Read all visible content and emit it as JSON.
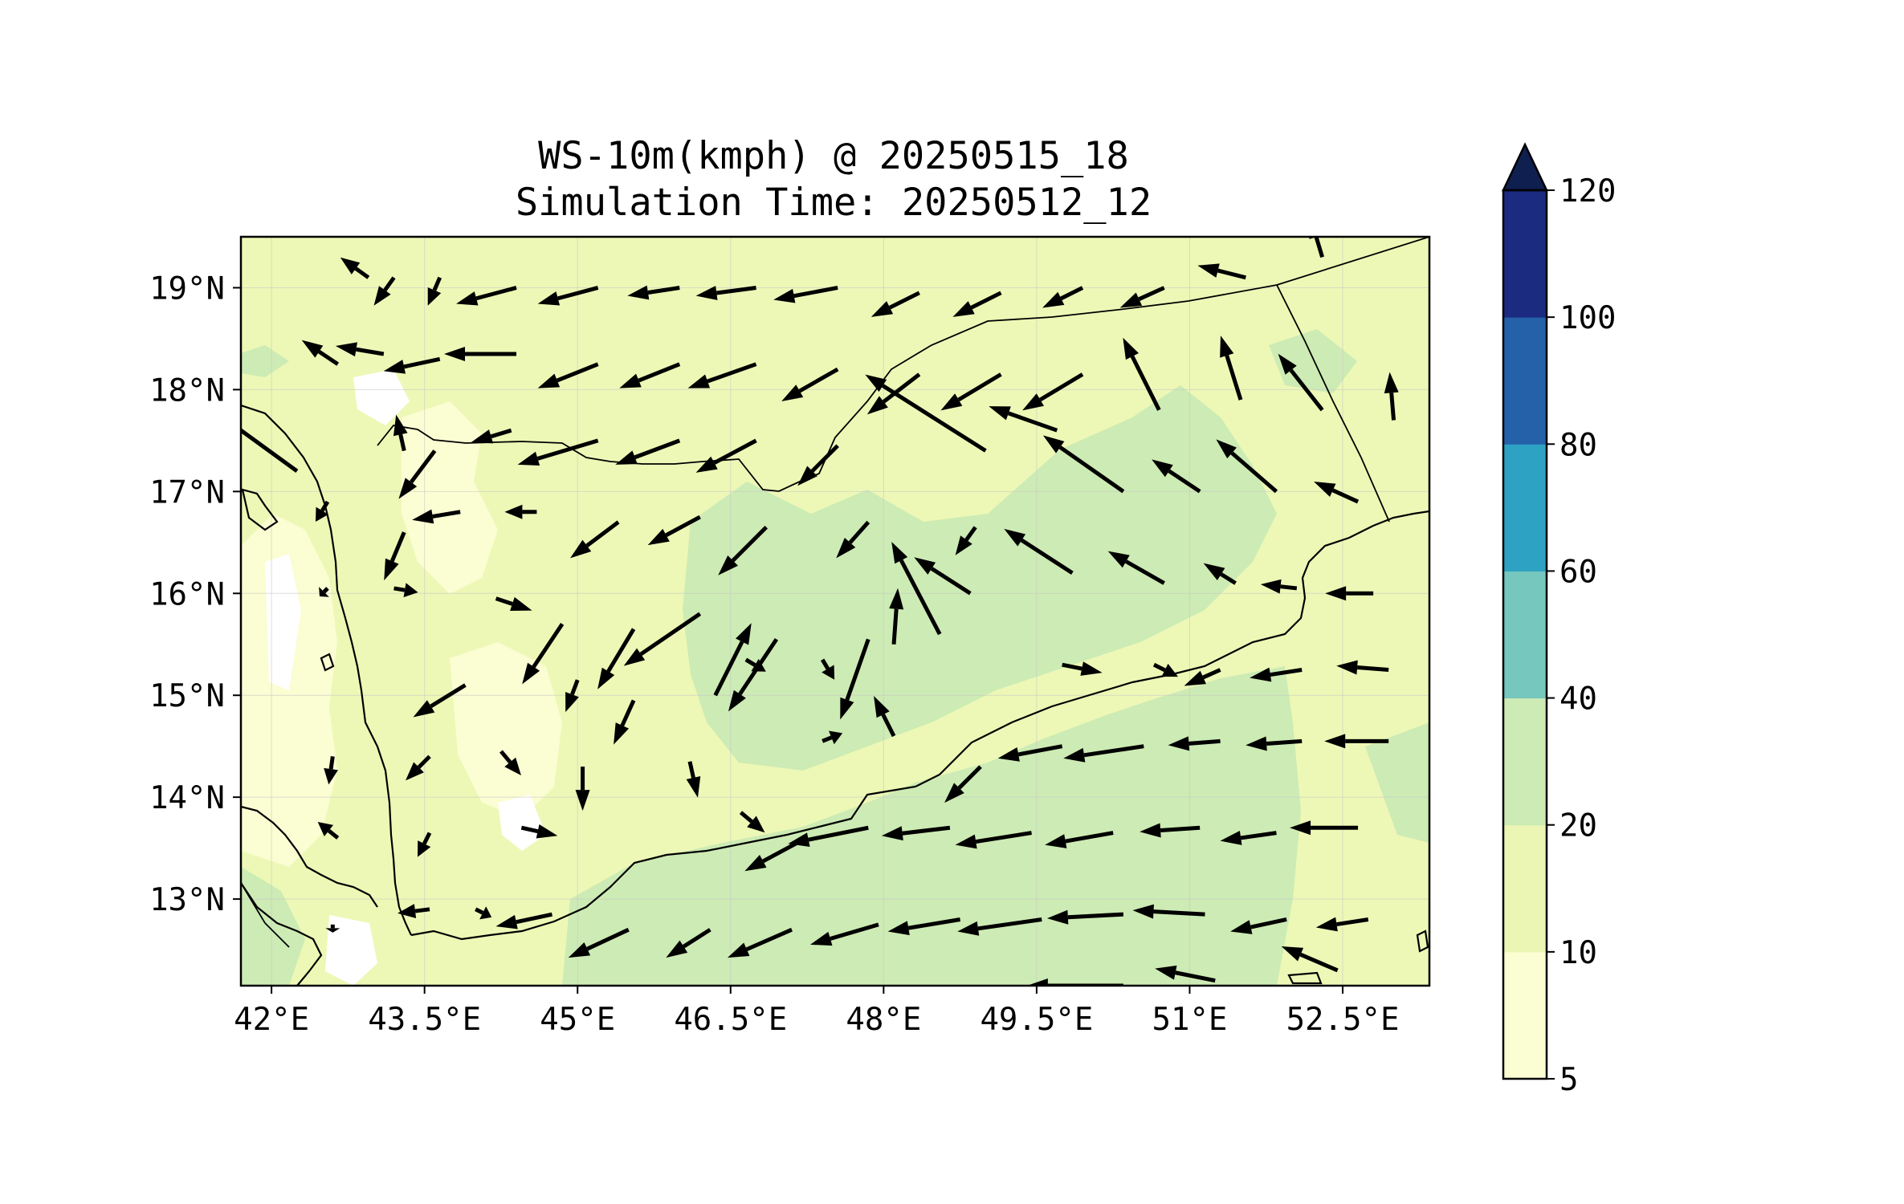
{
  "title": {
    "line1": "WS-10m(kmph) @ 20250515_18",
    "line2": "Simulation Time: 20250512_12"
  },
  "map": {
    "lon_range": [
      41.7,
      53.35
    ],
    "lat_range": [
      12.15,
      19.5
    ],
    "x_ticks": [
      "42°E",
      "43.5°E",
      "45°E",
      "46.5°E",
      "48°E",
      "49.5°E",
      "51°E",
      "52.5°E"
    ],
    "y_ticks": [
      "19°N",
      "18°N",
      "17°N",
      "16°N",
      "15°N",
      "14°N",
      "13°N"
    ],
    "gridlines": true,
    "background_level_color": "#edf8b6",
    "vector_color": "#000000"
  },
  "colorbar": {
    "levels": [
      "5",
      "10",
      "20",
      "40",
      "60",
      "80",
      "100",
      "120"
    ],
    "colors": [
      "#fbfdd2",
      "#ebf6b4",
      "#cdebb4",
      "#76c7bd",
      "#2da2c3",
      "#2461a8",
      "#1b2b80"
    ],
    "extend_color": "#0f1f4f",
    "extend": "max"
  },
  "chart_data": {
    "type": "vector-field",
    "variable": "WS-10m(kmph)",
    "valid_time": "20250515_18",
    "simulation_time": "20250512_12",
    "colorbar_levels": [
      5,
      10,
      20,
      40,
      60,
      80,
      100,
      120
    ],
    "wind_vectors": [
      {
        "lon": 42.95,
        "lat": 19.1,
        "u": -0.7,
        "v": 0.5
      },
      {
        "lon": 43.2,
        "lat": 19.1,
        "u": -0.5,
        "v": -0.7
      },
      {
        "lon": 43.65,
        "lat": 19.1,
        "u": -0.3,
        "v": -0.7
      },
      {
        "lon": 44.4,
        "lat": 19.0,
        "u": -1.5,
        "v": -0.4
      },
      {
        "lon": 45.2,
        "lat": 19.0,
        "u": -1.5,
        "v": -0.4
      },
      {
        "lon": 46.0,
        "lat": 19.0,
        "u": -1.3,
        "v": -0.2
      },
      {
        "lon": 46.75,
        "lat": 19.0,
        "u": -1.5,
        "v": -0.2
      },
      {
        "lon": 47.55,
        "lat": 19.0,
        "u": -1.6,
        "v": -0.3
      },
      {
        "lon": 48.35,
        "lat": 18.95,
        "u": -1.2,
        "v": -0.6
      },
      {
        "lon": 49.15,
        "lat": 18.95,
        "u": -1.2,
        "v": -0.6
      },
      {
        "lon": 49.95,
        "lat": 19.0,
        "u": -1.0,
        "v": -0.5
      },
      {
        "lon": 50.75,
        "lat": 19.0,
        "u": -1.1,
        "v": -0.5
      },
      {
        "lon": 51.55,
        "lat": 19.1,
        "u": -1.2,
        "v": 0.3
      },
      {
        "lon": 52.3,
        "lat": 19.3,
        "u": -0.3,
        "v": 1.0
      },
      {
        "lon": 42.65,
        "lat": 18.25,
        "u": -0.9,
        "v": 0.6
      },
      {
        "lon": 43.1,
        "lat": 18.35,
        "u": -1.2,
        "v": 0.2
      },
      {
        "lon": 43.65,
        "lat": 18.3,
        "u": -1.4,
        "v": -0.3
      },
      {
        "lon": 44.4,
        "lat": 18.35,
        "u": -1.8,
        "v": 0.0
      },
      {
        "lon": 45.2,
        "lat": 18.25,
        "u": -1.5,
        "v": -0.6
      },
      {
        "lon": 46.0,
        "lat": 18.25,
        "u": -1.5,
        "v": -0.6
      },
      {
        "lon": 46.75,
        "lat": 18.25,
        "u": -1.7,
        "v": -0.6
      },
      {
        "lon": 47.55,
        "lat": 18.2,
        "u": -1.4,
        "v": -0.8
      },
      {
        "lon": 48.35,
        "lat": 18.15,
        "u": -1.3,
        "v": -1.0
      },
      {
        "lon": 49.15,
        "lat": 18.15,
        "u": -1.5,
        "v": -0.9
      },
      {
        "lon": 49.95,
        "lat": 18.15,
        "u": -1.5,
        "v": -0.9
      },
      {
        "lon": 50.7,
        "lat": 17.8,
        "u": -0.9,
        "v": 1.8
      },
      {
        "lon": 51.5,
        "lat": 17.9,
        "u": -0.5,
        "v": 1.6
      },
      {
        "lon": 52.3,
        "lat": 17.8,
        "u": -1.1,
        "v": 1.4
      },
      {
        "lon": 53.0,
        "lat": 17.7,
        "u": -0.1,
        "v": 1.2
      },
      {
        "lon": 43.3,
        "lat": 17.4,
        "u": -0.2,
        "v": 0.9
      },
      {
        "lon": 43.6,
        "lat": 17.4,
        "u": -0.9,
        "v": -1.2
      },
      {
        "lon": 44.35,
        "lat": 17.6,
        "u": -1.0,
        "v": -0.3
      },
      {
        "lon": 45.2,
        "lat": 17.5,
        "u": -2.0,
        "v": -0.6
      },
      {
        "lon": 46.0,
        "lat": 17.5,
        "u": -1.6,
        "v": -0.6
      },
      {
        "lon": 46.75,
        "lat": 17.5,
        "u": -1.5,
        "v": -0.8
      },
      {
        "lon": 47.55,
        "lat": 17.45,
        "u": -1.0,
        "v": -1.0
      },
      {
        "lon": 49.0,
        "lat": 17.4,
        "u": -3.0,
        "v": 1.9
      },
      {
        "lon": 49.7,
        "lat": 17.6,
        "u": -1.7,
        "v": 0.6
      },
      {
        "lon": 50.35,
        "lat": 17.0,
        "u": -2.0,
        "v": 1.4
      },
      {
        "lon": 51.1,
        "lat": 17.0,
        "u": -1.2,
        "v": 0.8
      },
      {
        "lon": 51.85,
        "lat": 17.0,
        "u": -1.5,
        "v": 1.3
      },
      {
        "lon": 52.65,
        "lat": 16.9,
        "u": -1.1,
        "v": 0.5
      },
      {
        "lon": 42.25,
        "lat": 17.2,
        "u": -2.2,
        "v": 1.6
      },
      {
        "lon": 42.55,
        "lat": 16.9,
        "u": -0.3,
        "v": -0.5
      },
      {
        "lon": 43.3,
        "lat": 16.6,
        "u": -0.5,
        "v": -1.2
      },
      {
        "lon": 43.85,
        "lat": 16.8,
        "u": -1.2,
        "v": -0.2
      },
      {
        "lon": 44.6,
        "lat": 16.8,
        "u": -0.8,
        "v": 0.0
      },
      {
        "lon": 45.4,
        "lat": 16.7,
        "u": -1.2,
        "v": -0.9
      },
      {
        "lon": 46.2,
        "lat": 16.75,
        "u": -1.3,
        "v": -0.7
      },
      {
        "lon": 46.85,
        "lat": 16.65,
        "u": -1.2,
        "v": -1.2
      },
      {
        "lon": 47.85,
        "lat": 16.7,
        "u": -0.8,
        "v": -0.9
      },
      {
        "lon": 48.9,
        "lat": 16.65,
        "u": -0.5,
        "v": -0.7
      },
      {
        "lon": 48.85,
        "lat": 16.0,
        "u": -1.4,
        "v": 0.9
      },
      {
        "lon": 49.85,
        "lat": 16.2,
        "u": -1.7,
        "v": 1.1
      },
      {
        "lon": 50.75,
        "lat": 16.1,
        "u": -1.4,
        "v": 0.8
      },
      {
        "lon": 51.45,
        "lat": 16.1,
        "u": -0.8,
        "v": 0.5
      },
      {
        "lon": 52.05,
        "lat": 16.05,
        "u": -0.9,
        "v": 0.1
      },
      {
        "lon": 52.8,
        "lat": 16.0,
        "u": -1.2,
        "v": 0.0
      },
      {
        "lon": 42.55,
        "lat": 16.05,
        "u": -0.2,
        "v": -0.2
      },
      {
        "lon": 43.2,
        "lat": 16.05,
        "u": 0.6,
        "v": -0.1
      },
      {
        "lon": 44.2,
        "lat": 15.95,
        "u": 0.9,
        "v": -0.3
      },
      {
        "lon": 44.85,
        "lat": 15.7,
        "u": -1.0,
        "v": -1.5
      },
      {
        "lon": 45.55,
        "lat": 15.65,
        "u": -0.9,
        "v": -1.5
      },
      {
        "lon": 46.2,
        "lat": 15.8,
        "u": -1.9,
        "v": -1.3
      },
      {
        "lon": 46.95,
        "lat": 15.55,
        "u": -1.2,
        "v": -1.8
      },
      {
        "lon": 47.85,
        "lat": 15.55,
        "u": -0.7,
        "v": -2.0
      },
      {
        "lon": 48.1,
        "lat": 15.5,
        "u": 0.1,
        "v": 1.4
      },
      {
        "lon": 48.55,
        "lat": 15.6,
        "u": -1.2,
        "v": 2.3
      },
      {
        "lon": 47.4,
        "lat": 15.35,
        "u": 0.3,
        "v": -0.5
      },
      {
        "lon": 46.65,
        "lat": 15.35,
        "u": 0.5,
        "v": -0.3
      },
      {
        "lon": 49.75,
        "lat": 15.3,
        "u": 1.0,
        "v": -0.2
      },
      {
        "lon": 50.65,
        "lat": 15.3,
        "u": 0.6,
        "v": -0.3
      },
      {
        "lon": 51.3,
        "lat": 15.25,
        "u": -0.9,
        "v": -0.4
      },
      {
        "lon": 52.1,
        "lat": 15.25,
        "u": -1.3,
        "v": -0.2
      },
      {
        "lon": 52.95,
        "lat": 15.25,
        "u": -1.3,
        "v": 0.1
      },
      {
        "lon": 43.9,
        "lat": 15.1,
        "u": -1.3,
        "v": -0.8
      },
      {
        "lon": 45.0,
        "lat": 15.15,
        "u": -0.3,
        "v": -0.8
      },
      {
        "lon": 45.55,
        "lat": 14.95,
        "u": -0.5,
        "v": -1.1
      },
      {
        "lon": 46.35,
        "lat": 15.0,
        "u": 0.9,
        "v": 1.8
      },
      {
        "lon": 48.1,
        "lat": 14.6,
        "u": -0.5,
        "v": 1.0
      },
      {
        "lon": 47.4,
        "lat": 14.55,
        "u": 0.5,
        "v": 0.2
      },
      {
        "lon": 42.6,
        "lat": 14.4,
        "u": -0.1,
        "v": -0.7
      },
      {
        "lon": 43.55,
        "lat": 14.4,
        "u": -0.6,
        "v": -0.6
      },
      {
        "lon": 44.25,
        "lat": 14.45,
        "u": 0.5,
        "v": -0.6
      },
      {
        "lon": 45.05,
        "lat": 14.3,
        "u": 0.0,
        "v": -1.1
      },
      {
        "lon": 46.1,
        "lat": 14.35,
        "u": 0.2,
        "v": -0.9
      },
      {
        "lon": 48.95,
        "lat": 14.3,
        "u": -0.9,
        "v": -0.9
      },
      {
        "lon": 49.75,
        "lat": 14.5,
        "u": -1.6,
        "v": -0.3
      },
      {
        "lon": 50.55,
        "lat": 14.5,
        "u": -2.0,
        "v": -0.3
      },
      {
        "lon": 51.3,
        "lat": 14.55,
        "u": -1.3,
        "v": -0.1
      },
      {
        "lon": 52.1,
        "lat": 14.55,
        "u": -1.4,
        "v": -0.1
      },
      {
        "lon": 52.95,
        "lat": 14.55,
        "u": -1.6,
        "v": 0.0
      },
      {
        "lon": 42.65,
        "lat": 13.6,
        "u": -0.5,
        "v": 0.4
      },
      {
        "lon": 43.55,
        "lat": 13.65,
        "u": -0.3,
        "v": -0.6
      },
      {
        "lon": 44.45,
        "lat": 13.7,
        "u": 0.9,
        "v": -0.2
      },
      {
        "lon": 46.6,
        "lat": 13.85,
        "u": 0.6,
        "v": -0.5
      },
      {
        "lon": 47.15,
        "lat": 13.55,
        "u": -1.3,
        "v": -0.7
      },
      {
        "lon": 47.85,
        "lat": 13.7,
        "u": -2.0,
        "v": -0.4
      },
      {
        "lon": 48.65,
        "lat": 13.7,
        "u": -1.7,
        "v": -0.2
      },
      {
        "lon": 49.45,
        "lat": 13.65,
        "u": -1.9,
        "v": -0.3
      },
      {
        "lon": 50.25,
        "lat": 13.65,
        "u": -1.7,
        "v": -0.3
      },
      {
        "lon": 51.1,
        "lat": 13.7,
        "u": -1.5,
        "v": -0.1
      },
      {
        "lon": 51.85,
        "lat": 13.65,
        "u": -1.4,
        "v": -0.2
      },
      {
        "lon": 52.65,
        "lat": 13.7,
        "u": -1.7,
        "v": 0.0
      },
      {
        "lon": 42.6,
        "lat": 12.75,
        "u": 0.0,
        "v": -0.2
      },
      {
        "lon": 43.55,
        "lat": 12.9,
        "u": -0.8,
        "v": -0.1
      },
      {
        "lon": 44.0,
        "lat": 12.9,
        "u": 0.4,
        "v": -0.2
      },
      {
        "lon": 44.75,
        "lat": 12.85,
        "u": -1.4,
        "v": -0.3
      },
      {
        "lon": 45.5,
        "lat": 12.7,
        "u": -1.5,
        "v": -0.7
      },
      {
        "lon": 46.3,
        "lat": 12.7,
        "u": -1.1,
        "v": -0.7
      },
      {
        "lon": 47.1,
        "lat": 12.7,
        "u": -1.6,
        "v": -0.7
      },
      {
        "lon": 47.95,
        "lat": 12.75,
        "u": -1.7,
        "v": -0.5
      },
      {
        "lon": 48.75,
        "lat": 12.8,
        "u": -1.8,
        "v": -0.3
      },
      {
        "lon": 49.55,
        "lat": 12.8,
        "u": -2.1,
        "v": -0.3
      },
      {
        "lon": 50.35,
        "lat": 12.85,
        "u": -1.9,
        "v": -0.1
      },
      {
        "lon": 51.15,
        "lat": 12.85,
        "u": -1.8,
        "v": 0.1
      },
      {
        "lon": 51.95,
        "lat": 12.8,
        "u": -1.4,
        "v": -0.3
      },
      {
        "lon": 52.75,
        "lat": 12.8,
        "u": -1.3,
        "v": -0.2
      },
      {
        "lon": 50.35,
        "lat": 12.15,
        "u": -2.4,
        "v": 0.0
      },
      {
        "lon": 51.25,
        "lat": 12.2,
        "u": -1.5,
        "v": 0.3
      },
      {
        "lon": 52.45,
        "lat": 12.3,
        "u": -1.4,
        "v": 0.6
      }
    ]
  }
}
